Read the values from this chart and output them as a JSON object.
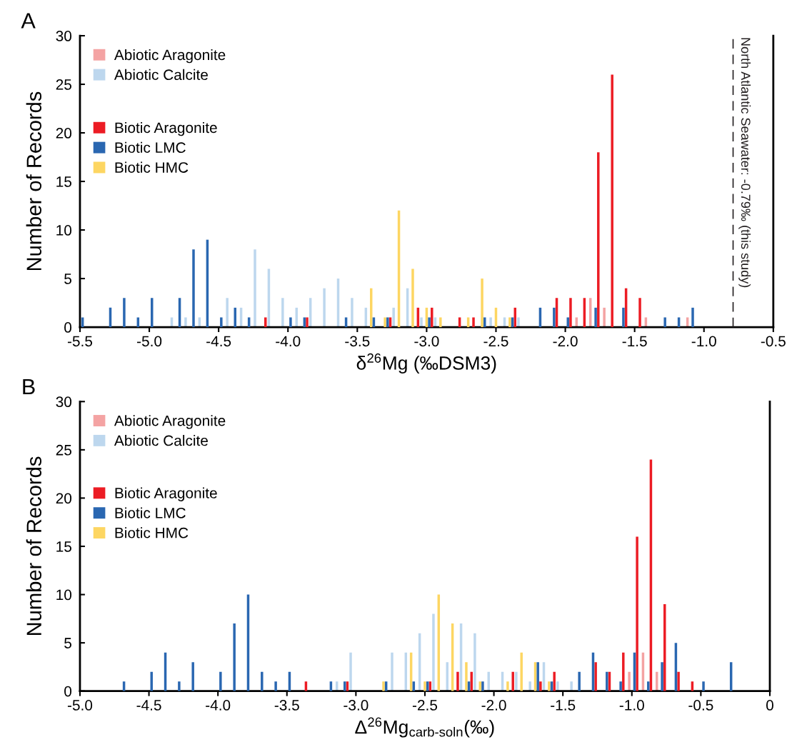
{
  "chart_data": [
    {
      "type": "bar",
      "xlabel": "δ$^{26}$Mg (‰DSM3)",
      "ylabel": "Number of Records",
      "annotations": [
        "A"
      ],
      "xlim": [
        -5.5,
        -0.5
      ],
      "xticks": [
        -5.5,
        {
          "value": -5,
          "label": "-5.0"
        },
        -4.5,
        {
          "value": -4,
          "label": "-4.0"
        },
        -3.5,
        {
          "value": -3,
          "label": "-3.0"
        },
        -2.5,
        {
          "value": -2,
          "label": "-2.0"
        },
        -1.5,
        {
          "value": -1,
          "label": "-1.0"
        },
        -0.5
      ],
      "ylim": [
        0,
        30
      ],
      "yticks": [
        0,
        5,
        10,
        15,
        20,
        25,
        30
      ],
      "legend": "top left",
      "grid": false,
      "ref_lines": [
        {
          "axis": "x",
          "value": -0.79,
          "label": "North Atlantic Seawater: -0.79‰ (this study)",
          "line_style": "dashed",
          "color": "#231f20"
        }
      ],
      "series": [
        {
          "name": "Abiotic Aragonite",
          "color": "#f4a3a3",
          "x": [
            -1.9,
            -1.8,
            -1.7,
            -1.4,
            -1.1
          ],
          "values": [
            1,
            3,
            2,
            1,
            1
          ]
        },
        {
          "name": "Abiotic Calcite",
          "color": "#bdd7ee",
          "x": [
            -4.8,
            -4.7,
            -4.6,
            -4.4,
            -4.3,
            -4.2,
            -4.1,
            -4.0,
            -3.9,
            -3.8,
            -3.7,
            -3.6,
            -3.5,
            -3.4,
            -3.2,
            -3.1,
            -3.0,
            -2.9,
            -2.5,
            -2.4,
            -2.3
          ],
          "values": [
            1,
            1,
            1,
            3,
            2,
            8,
            6,
            3,
            2,
            3,
            4,
            5,
            3,
            2,
            2,
            4,
            1,
            1,
            1,
            1,
            1
          ]
        },
        {
          "name": "Biotic Aragonite",
          "color": "#ec1c24",
          "x": [
            -4.2,
            -3.9,
            -3.3,
            -3.1,
            -3.0,
            -2.8,
            -2.7,
            -2.4,
            -2.1,
            -2.0,
            -1.9,
            -1.8,
            -1.7,
            -1.6,
            -1.5
          ],
          "values": [
            1,
            1,
            1,
            2,
            2,
            1,
            1,
            2,
            3,
            3,
            3,
            18,
            26,
            4,
            3
          ]
        },
        {
          "name": "Biotic LMC",
          "color": "#2a67b1",
          "x": [
            -5.5,
            -5.3,
            -5.2,
            -5.1,
            -5.0,
            -4.8,
            -4.7,
            -4.6,
            -4.5,
            -4.4,
            -4.3,
            -4.0,
            -3.9,
            -3.6,
            -3.4,
            -3.3,
            -3.0,
            -2.6,
            -2.4,
            -2.2,
            -2.1,
            -2.0,
            -1.8,
            -1.6,
            -1.3,
            -1.2,
            -1.1
          ],
          "values": [
            1,
            2,
            3,
            1,
            3,
            3,
            8,
            9,
            1,
            2,
            1,
            1,
            1,
            1,
            1,
            1,
            1,
            1,
            1,
            2,
            2,
            1,
            2,
            2,
            1,
            1,
            2
          ]
        },
        {
          "name": "Biotic HMC",
          "color": "#fdd662",
          "x": [
            -3.4,
            -3.3,
            -3.2,
            -3.1,
            -3.0,
            -2.9,
            -2.7,
            -2.6,
            -2.5,
            -2.4
          ],
          "values": [
            4,
            1,
            12,
            6,
            2,
            1,
            1,
            5,
            2,
            1
          ]
        }
      ]
    },
    {
      "type": "bar",
      "xlabel": "Δ$^{26}$Mg$_{carb‐soln}$(‰)",
      "ylabel": "Number of Records",
      "annotations": [
        "B"
      ],
      "xlim": [
        -5.0,
        0
      ],
      "xticks": [
        {
          "value": -5,
          "label": "-5.0"
        },
        -4.5,
        {
          "value": -4,
          "label": "-4.0"
        },
        -3.5,
        {
          "value": -3,
          "label": "-3.0"
        },
        -2.5,
        {
          "value": -2,
          "label": "-2.0"
        },
        -1.5,
        {
          "value": -1,
          "label": "-1.0"
        },
        -0.5,
        0
      ],
      "ylim": [
        0,
        30
      ],
      "yticks": [
        0,
        5,
        10,
        15,
        20,
        25,
        30
      ],
      "legend": "top left",
      "grid": false,
      "series": [
        {
          "name": "Abiotic Aragonite",
          "color": "#f4a3a3",
          "x": [
            -1.0,
            -0.9,
            -0.8
          ],
          "values": [
            2,
            4,
            2
          ]
        },
        {
          "name": "Abiotic Calcite",
          "color": "#bdd7ee",
          "x": [
            -3.1,
            -3.0,
            -2.7,
            -2.6,
            -2.5,
            -2.4,
            -2.3,
            -2.2,
            -2.1,
            -2.0,
            -1.9,
            -1.8,
            -1.7,
            -1.6,
            -1.5,
            -1.4
          ],
          "values": [
            1,
            4,
            4,
            4,
            6,
            8,
            3,
            7,
            6,
            2,
            2,
            2,
            1,
            3,
            1,
            1
          ]
        },
        {
          "name": "Biotic Aragonite",
          "color": "#ec1c24",
          "x": [
            -3.4,
            -3.1,
            -2.5,
            -2.3,
            -2.2,
            -1.9,
            -1.7,
            -1.6,
            -1.3,
            -1.2,
            -1.1,
            -1.0,
            -0.9,
            -0.8,
            -0.7,
            -0.6
          ],
          "values": [
            1,
            1,
            1,
            2,
            2,
            2,
            1,
            2,
            3,
            2,
            4,
            16,
            24,
            9,
            2,
            1
          ]
        },
        {
          "name": "Biotic LMC",
          "color": "#2a67b1",
          "x": [
            -4.7,
            -4.5,
            -4.4,
            -4.3,
            -4.2,
            -4.0,
            -3.9,
            -3.8,
            -3.7,
            -3.6,
            -3.5,
            -3.2,
            -3.1,
            -2.8,
            -2.6,
            -2.5,
            -2.2,
            -2.1,
            -1.7,
            -1.6,
            -1.4,
            -1.3,
            -1.2,
            -1.1,
            -1.0,
            -0.9,
            -0.8,
            -0.7,
            -0.5,
            -0.3
          ],
          "values": [
            1,
            2,
            4,
            1,
            3,
            2,
            7,
            10,
            2,
            1,
            2,
            1,
            1,
            1,
            1,
            1,
            1,
            1,
            3,
            1,
            2,
            4,
            2,
            1,
            4,
            1,
            3,
            5,
            1,
            3
          ]
        },
        {
          "name": "Biotic HMC",
          "color": "#fdd662",
          "x": [
            -2.8,
            -2.6,
            -2.5,
            -2.4,
            -2.3,
            -2.2,
            -2.1,
            -1.9,
            -1.8,
            -1.7,
            -1.6
          ],
          "values": [
            1,
            4,
            1,
            10,
            7,
            3,
            1,
            1,
            4,
            3,
            1
          ]
        }
      ]
    }
  ]
}
